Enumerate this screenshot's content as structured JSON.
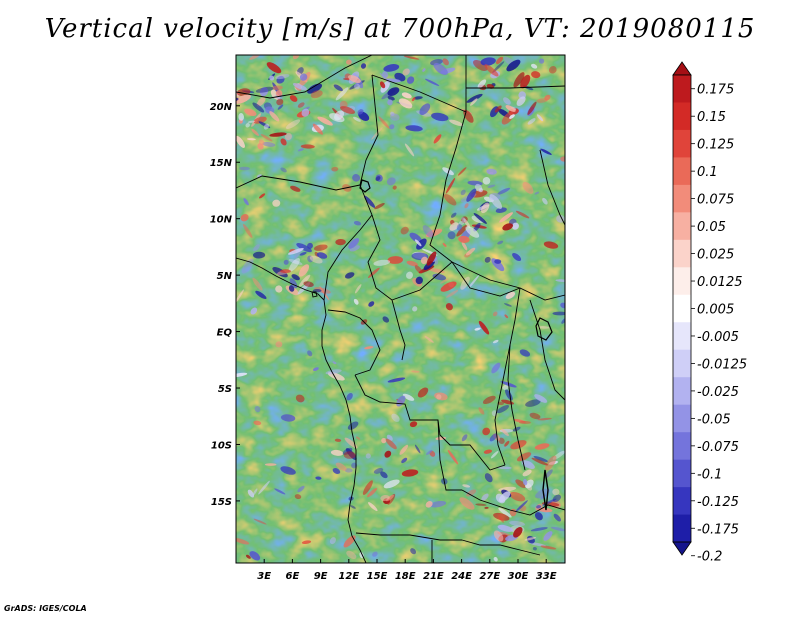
{
  "title": "Vertical velocity [m/s] at 700hPa, VT: 2019080115",
  "footer": "GrADS: IGES/COLA",
  "map": {
    "variable": "Vertical velocity",
    "units": "m/s",
    "level": "700hPa",
    "valid_time": "2019080115",
    "lon_range": [
      0,
      35
    ],
    "lat_range": [
      -20.5,
      24.5
    ],
    "lon_ticks": [
      "3E",
      "6E",
      "9E",
      "12E",
      "15E",
      "18E",
      "21E",
      "24E",
      "27E",
      "30E",
      "33E"
    ],
    "lat_ticks": [
      "20N",
      "15N",
      "10N",
      "5N",
      "EQ",
      "5S",
      "10S",
      "15S"
    ],
    "lon_values": [
      3,
      6,
      9,
      12,
      15,
      18,
      21,
      24,
      27,
      30,
      33
    ],
    "lat_values": [
      20,
      15,
      10,
      5,
      0,
      -5,
      -10,
      -15
    ]
  },
  "colorbar": {
    "labels": [
      "0.175",
      "0.15",
      "0.125",
      "0.1",
      "0.075",
      "0.05",
      "0.025",
      "0.0125",
      "0.005",
      "-0.005",
      "-0.0125",
      "-0.025",
      "-0.05",
      "-0.075",
      "-0.1",
      "-0.125",
      "-0.175",
      "-0.2"
    ],
    "colors": [
      "#a50f15",
      "#be1a1e",
      "#d32a26",
      "#e0443a",
      "#ea6a58",
      "#f28c7a",
      "#f7b0a2",
      "#fbd3ca",
      "#fdeeea",
      "#ffffff",
      "#e6e6fb",
      "#cfcff7",
      "#b2b2f0",
      "#9393e6",
      "#7474dc",
      "#5555cf",
      "#3636bf",
      "#1e1ea8",
      "#14148c"
    ]
  }
}
